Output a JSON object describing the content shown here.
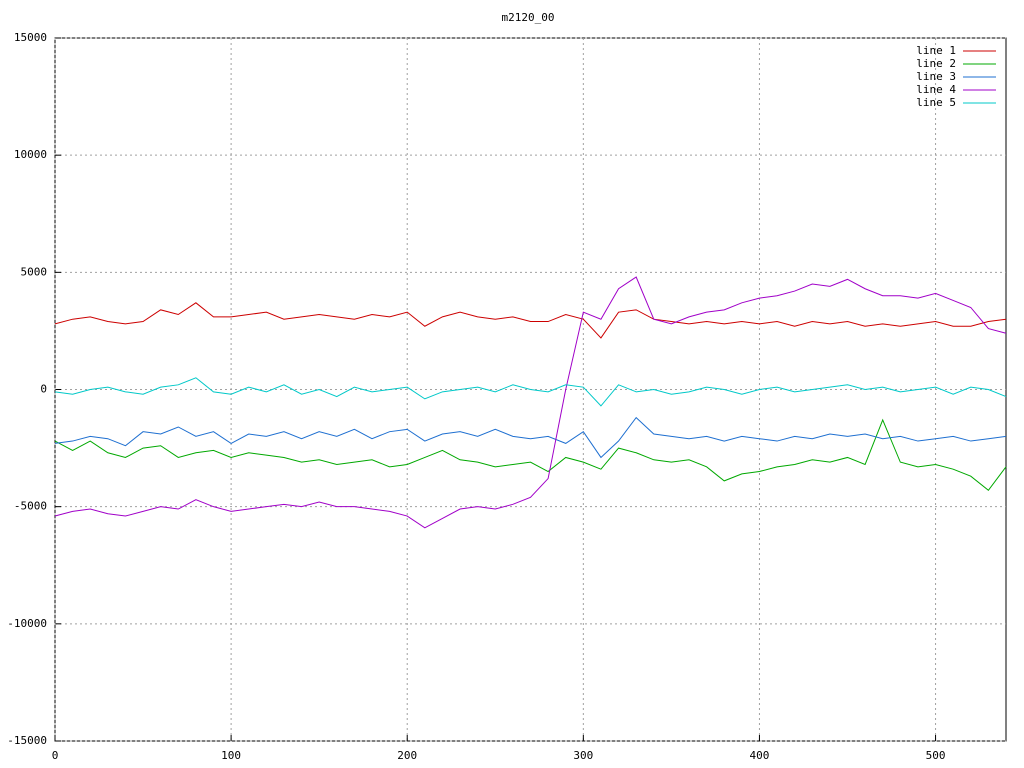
{
  "chart_data": {
    "type": "line",
    "title": "m2120_00",
    "xlim": [
      0,
      540
    ],
    "xticks": [
      0,
      100,
      200,
      300,
      400,
      500
    ],
    "ylim": [
      -15000,
      15000
    ],
    "yticks": [
      -15000,
      -10000,
      -5000,
      0,
      5000,
      10000,
      15000
    ],
    "grid": true,
    "legend": "top-right",
    "x": [
      0,
      10,
      20,
      30,
      40,
      50,
      60,
      70,
      80,
      90,
      100,
      110,
      120,
      130,
      140,
      150,
      160,
      170,
      180,
      190,
      200,
      210,
      220,
      230,
      240,
      250,
      260,
      270,
      280,
      290,
      300,
      310,
      320,
      330,
      340,
      350,
      360,
      370,
      380,
      390,
      400,
      410,
      420,
      430,
      440,
      450,
      460,
      470,
      480,
      490,
      500,
      510,
      520,
      530,
      540
    ],
    "series": [
      {
        "name": "line 1",
        "color": "#cc0000",
        "values": [
          2800,
          3000,
          3100,
          2900,
          2800,
          2900,
          3400,
          3200,
          3700,
          3100,
          3100,
          3200,
          3300,
          3000,
          3100,
          3200,
          3100,
          3000,
          3200,
          3100,
          3300,
          2700,
          3100,
          3300,
          3100,
          3000,
          3100,
          2900,
          2900,
          3200,
          3000,
          2200,
          3300,
          3400,
          3000,
          2900,
          2800,
          2900,
          2800,
          2900,
          2800,
          2900,
          2700,
          2900,
          2800,
          2900,
          2700,
          2800,
          2700,
          2800,
          2900,
          2700,
          2700,
          2900,
          3000
        ]
      },
      {
        "name": "line 2",
        "color": "#00a800",
        "values": [
          -2200,
          -2600,
          -2200,
          -2700,
          -2900,
          -2500,
          -2400,
          -2900,
          -2700,
          -2600,
          -2900,
          -2700,
          -2800,
          -2900,
          -3100,
          -3000,
          -3200,
          -3100,
          -3000,
          -3300,
          -3200,
          -2900,
          -2600,
          -3000,
          -3100,
          -3300,
          -3200,
          -3100,
          -3500,
          -2900,
          -3100,
          -3400,
          -2500,
          -2700,
          -3000,
          -3100,
          -3000,
          -3300,
          -3900,
          -3600,
          -3500,
          -3300,
          -3200,
          -3000,
          -3100,
          -2900,
          -3200,
          -1300,
          -3100,
          -3300,
          -3200,
          -3400,
          -3700,
          -4300,
          -3300
        ]
      },
      {
        "name": "line 3",
        "color": "#1e6fd0",
        "values": [
          -2300,
          -2200,
          -2000,
          -2100,
          -2400,
          -1800,
          -1900,
          -1600,
          -2000,
          -1800,
          -2300,
          -1900,
          -2000,
          -1800,
          -2100,
          -1800,
          -2000,
          -1700,
          -2100,
          -1800,
          -1700,
          -2200,
          -1900,
          -1800,
          -2000,
          -1700,
          -2000,
          -2100,
          -2000,
          -2300,
          -1800,
          -2900,
          -2200,
          -1200,
          -1900,
          -2000,
          -2100,
          -2000,
          -2200,
          -2000,
          -2100,
          -2200,
          -2000,
          -2100,
          -1900,
          -2000,
          -1900,
          -2100,
          -2000,
          -2200,
          -2100,
          -2000,
          -2200,
          -2100,
          -2000
        ]
      },
      {
        "name": "line 4",
        "color": "#a000c8",
        "values": [
          -5400,
          -5200,
          -5100,
          -5300,
          -5400,
          -5200,
          -5000,
          -5100,
          -4700,
          -5000,
          -5200,
          -5100,
          -5000,
          -4900,
          -5000,
          -4800,
          -5000,
          -5000,
          -5100,
          -5200,
          -5400,
          -5900,
          -5500,
          -5100,
          -5000,
          -5100,
          -4900,
          -4600,
          -3800,
          0,
          3300,
          3000,
          4300,
          4800,
          3000,
          2800,
          3100,
          3300,
          3400,
          3700,
          3900,
          4000,
          4200,
          4500,
          4400,
          4700,
          4300,
          4000,
          4000,
          3900,
          4100,
          3800,
          3500,
          2600,
          2400
        ]
      },
      {
        "name": "line 5",
        "color": "#00c8c8",
        "values": [
          -100,
          -200,
          0,
          100,
          -100,
          -200,
          100,
          200,
          500,
          -100,
          -200,
          100,
          -100,
          200,
          -200,
          0,
          -300,
          100,
          -100,
          0,
          100,
          -400,
          -100,
          0,
          100,
          -100,
          200,
          0,
          -100,
          200,
          100,
          -700,
          200,
          -100,
          0,
          -200,
          -100,
          100,
          0,
          -200,
          0,
          100,
          -100,
          0,
          100,
          200,
          0,
          100,
          -100,
          0,
          100,
          -200,
          100,
          0,
          -300
        ]
      }
    ]
  }
}
